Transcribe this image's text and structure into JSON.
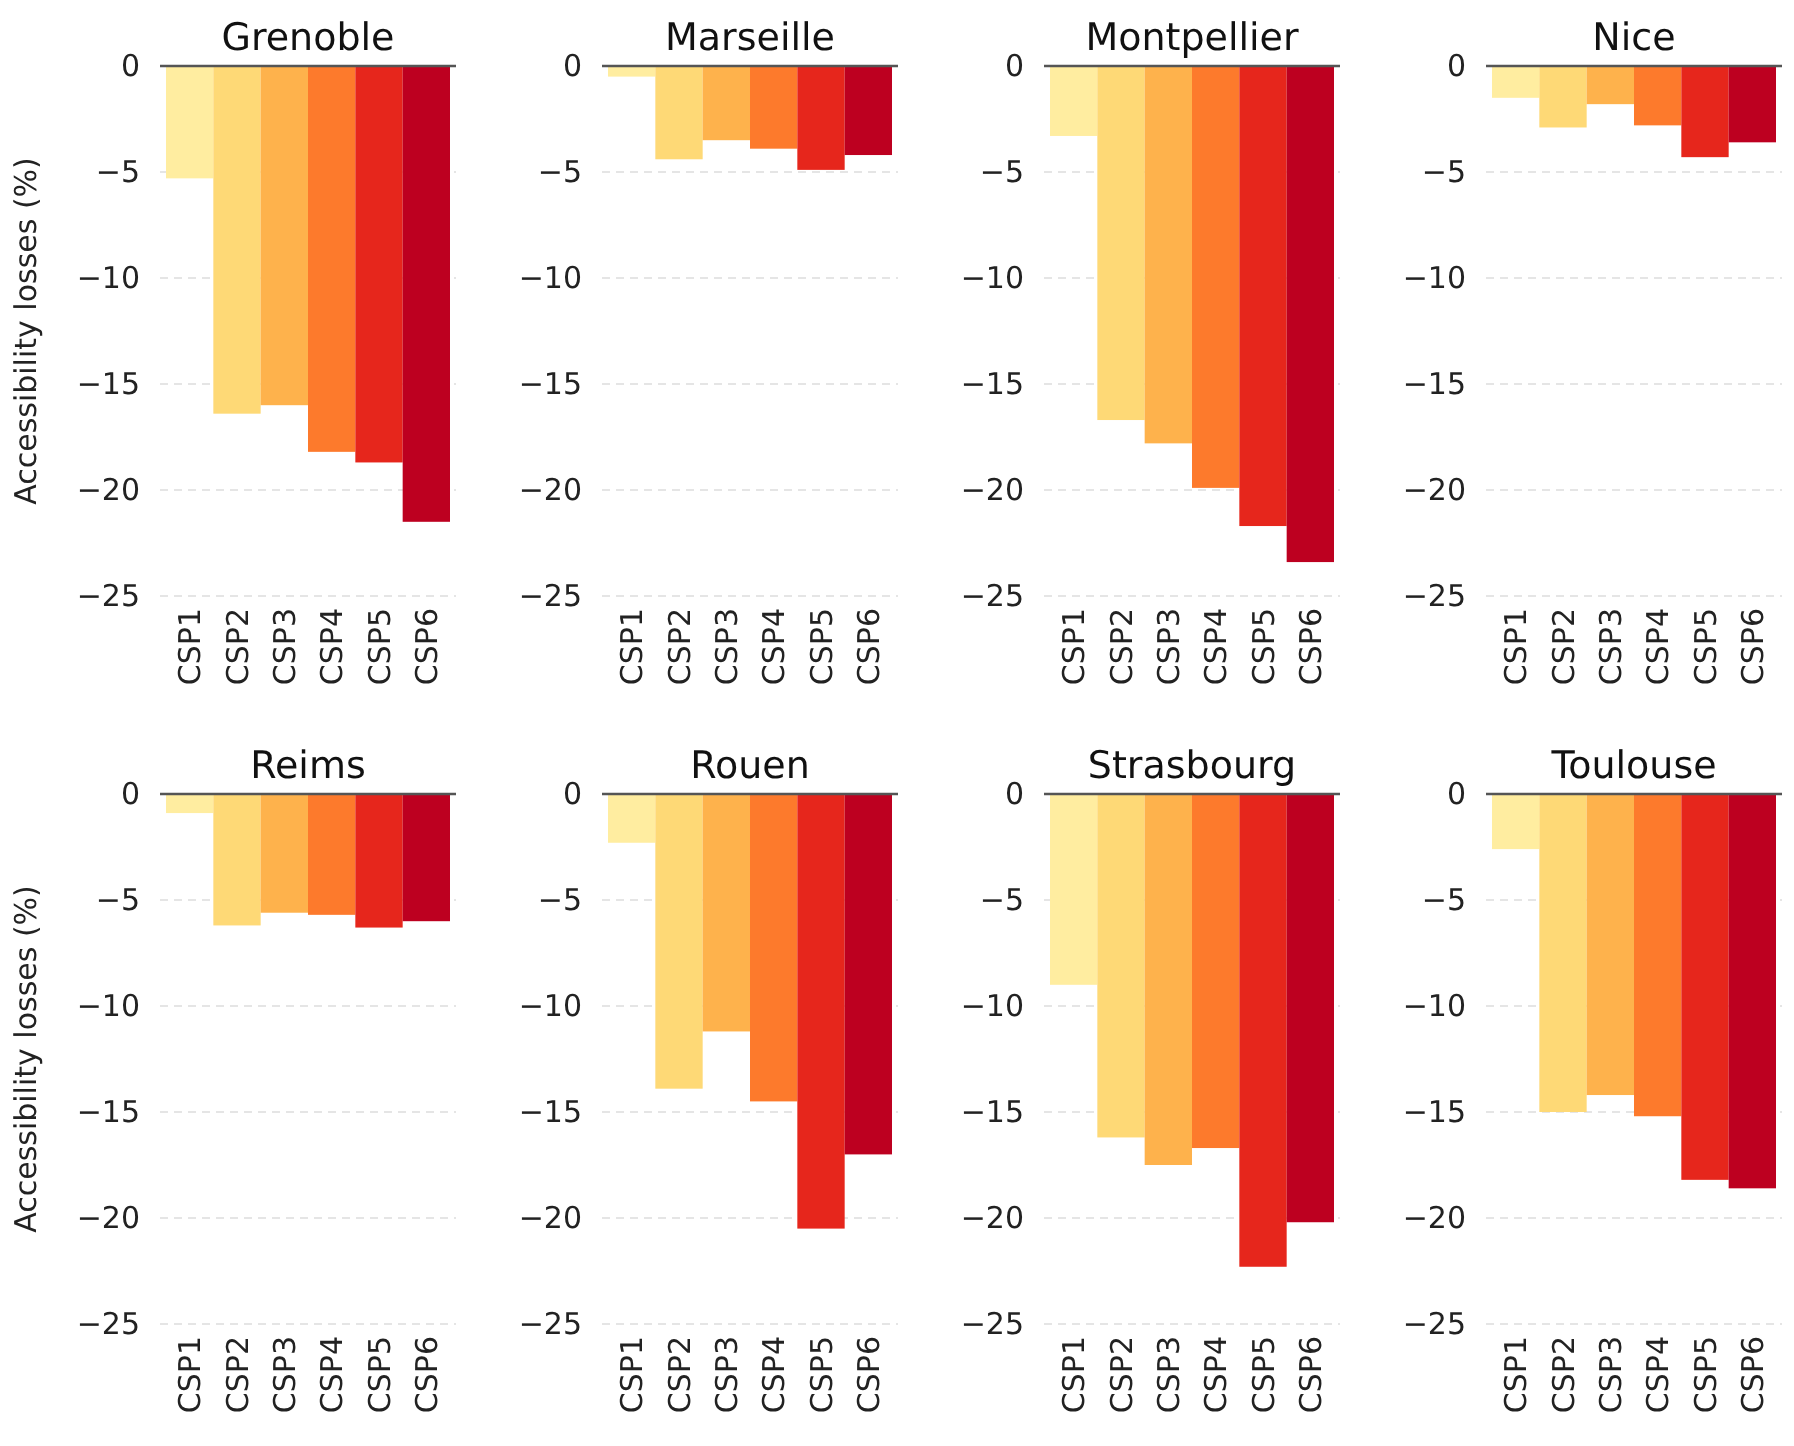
{
  "chart_data": [
    {
      "type": "bar",
      "title": "Grenoble",
      "ylabel": "Accessibility losses (%)",
      "categories": [
        "CSP1",
        "CSP2",
        "CSP3",
        "CSP4",
        "CSP5",
        "CSP6"
      ],
      "values": [
        -5.3,
        -16.4,
        -16.0,
        -18.2,
        -18.7,
        -21.5
      ],
      "colors": [
        "#ffeda0",
        "#fed976",
        "#feb24c",
        "#fd7a2c",
        "#e6261c",
        "#bd0020"
      ],
      "ylim": [
        -25,
        0
      ],
      "yticks": [
        0,
        -5,
        -10,
        -15,
        -20,
        -25
      ],
      "grid": "y"
    },
    {
      "type": "bar",
      "title": "Marseille",
      "categories": [
        "CSP1",
        "CSP2",
        "CSP3",
        "CSP4",
        "CSP5",
        "CSP6"
      ],
      "values": [
        -0.5,
        -4.4,
        -3.5,
        -3.9,
        -4.9,
        -4.2
      ],
      "colors": [
        "#ffeda0",
        "#fed976",
        "#feb24c",
        "#fd7a2c",
        "#e6261c",
        "#bd0020"
      ],
      "ylim": [
        -25,
        0
      ],
      "yticks": [
        0,
        -5,
        -10,
        -15,
        -20,
        -25
      ],
      "grid": "y"
    },
    {
      "type": "bar",
      "title": "Montpellier",
      "categories": [
        "CSP1",
        "CSP2",
        "CSP3",
        "CSP4",
        "CSP5",
        "CSP6"
      ],
      "values": [
        -3.3,
        -16.7,
        -17.8,
        -19.9,
        -21.7,
        -23.4
      ],
      "colors": [
        "#ffeda0",
        "#fed976",
        "#feb24c",
        "#fd7a2c",
        "#e6261c",
        "#bd0020"
      ],
      "ylim": [
        -25,
        0
      ],
      "yticks": [
        0,
        -5,
        -10,
        -15,
        -20,
        -25
      ],
      "grid": "y"
    },
    {
      "type": "bar",
      "title": "Nice",
      "categories": [
        "CSP1",
        "CSP2",
        "CSP3",
        "CSP4",
        "CSP5",
        "CSP6"
      ],
      "values": [
        -1.5,
        -2.9,
        -1.8,
        -2.8,
        -4.3,
        -3.6
      ],
      "colors": [
        "#ffeda0",
        "#fed976",
        "#feb24c",
        "#fd7a2c",
        "#e6261c",
        "#bd0020"
      ],
      "ylim": [
        -25,
        0
      ],
      "yticks": [
        0,
        -5,
        -10,
        -15,
        -20,
        -25
      ],
      "grid": "y"
    },
    {
      "type": "bar",
      "title": "Reims",
      "ylabel": "Accessibility losses (%)",
      "categories": [
        "CSP1",
        "CSP2",
        "CSP3",
        "CSP4",
        "CSP5",
        "CSP6"
      ],
      "values": [
        -0.9,
        -6.2,
        -5.6,
        -5.7,
        -6.3,
        -6.0
      ],
      "colors": [
        "#ffeda0",
        "#fed976",
        "#feb24c",
        "#fd7a2c",
        "#e6261c",
        "#bd0020"
      ],
      "ylim": [
        -25,
        0
      ],
      "yticks": [
        0,
        -5,
        -10,
        -15,
        -20,
        -25
      ],
      "grid": "y"
    },
    {
      "type": "bar",
      "title": "Rouen",
      "categories": [
        "CSP1",
        "CSP2",
        "CSP3",
        "CSP4",
        "CSP5",
        "CSP6"
      ],
      "values": [
        -2.3,
        -13.9,
        -11.2,
        -14.5,
        -20.5,
        -17.0
      ],
      "colors": [
        "#ffeda0",
        "#fed976",
        "#feb24c",
        "#fd7a2c",
        "#e6261c",
        "#bd0020"
      ],
      "ylim": [
        -25,
        0
      ],
      "yticks": [
        0,
        -5,
        -10,
        -15,
        -20,
        -25
      ],
      "grid": "y"
    },
    {
      "type": "bar",
      "title": "Strasbourg",
      "categories": [
        "CSP1",
        "CSP2",
        "CSP3",
        "CSP4",
        "CSP5",
        "CSP6"
      ],
      "values": [
        -9.0,
        -16.2,
        -17.5,
        -16.7,
        -22.3,
        -20.2
      ],
      "colors": [
        "#ffeda0",
        "#fed976",
        "#feb24c",
        "#fd7a2c",
        "#e6261c",
        "#bd0020"
      ],
      "ylim": [
        -25,
        0
      ],
      "yticks": [
        0,
        -5,
        -10,
        -15,
        -20,
        -25
      ],
      "grid": "y"
    },
    {
      "type": "bar",
      "title": "Toulouse",
      "categories": [
        "CSP1",
        "CSP2",
        "CSP3",
        "CSP4",
        "CSP5",
        "CSP6"
      ],
      "values": [
        -2.6,
        -15.0,
        -14.2,
        -15.2,
        -18.2,
        -18.6
      ],
      "colors": [
        "#ffeda0",
        "#fed976",
        "#feb24c",
        "#fd7a2c",
        "#e6261c",
        "#bd0020"
      ],
      "ylim": [
        -25,
        0
      ],
      "yticks": [
        0,
        -5,
        -10,
        -15,
        -20,
        -25
      ],
      "grid": "y"
    }
  ]
}
